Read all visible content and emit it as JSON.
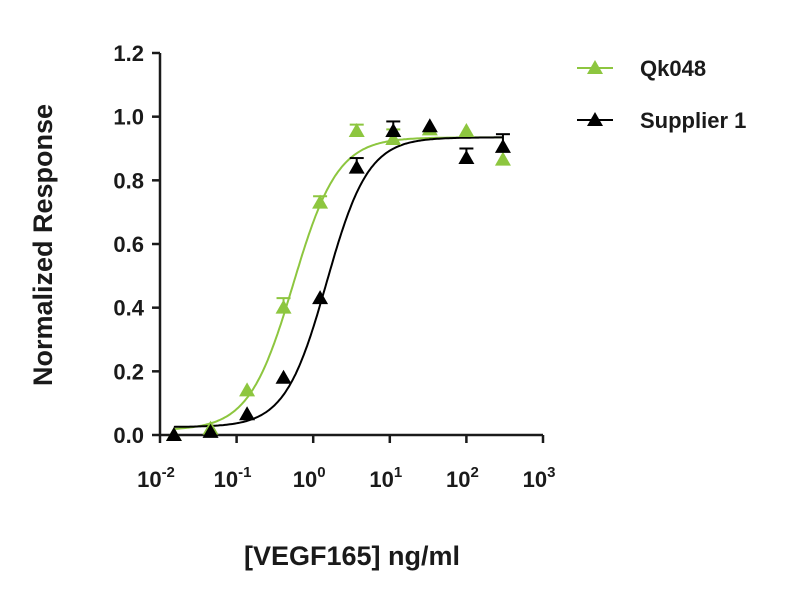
{
  "chart_data": {
    "type": "scatter",
    "title": "",
    "xlabel": "[VEGF165] ng/ml",
    "ylabel": "Normalized Response",
    "xscale": "log",
    "xlim": [
      0.01,
      1000
    ],
    "ylim": [
      0,
      1.2
    ],
    "xticks": [
      {
        "base": "10",
        "exp": "-2"
      },
      {
        "base": "10",
        "exp": "-1"
      },
      {
        "base": "10",
        "exp": "0"
      },
      {
        "base": "10",
        "exp": "1"
      },
      {
        "base": "10",
        "exp": "2"
      },
      {
        "base": "10",
        "exp": "3"
      }
    ],
    "yticks": [
      "0.0",
      "0.2",
      "0.4",
      "0.6",
      "0.8",
      "1.0",
      "1.2"
    ],
    "grid": false,
    "legend_placement": "top-right",
    "series": [
      {
        "name": "Qk048",
        "color": "#8dc63f",
        "marker": "triangle",
        "x": [
          0.0152,
          0.0457,
          0.137,
          0.41,
          1.23,
          3.7,
          11.1,
          33.3,
          100,
          300
        ],
        "y": [
          0.0,
          0.02,
          0.14,
          0.4,
          0.73,
          0.955,
          0.93,
          0.96,
          0.955,
          0.865
        ],
        "error": [
          0,
          0,
          0,
          0.03,
          0.02,
          0.02,
          0.03,
          0,
          0,
          0
        ],
        "fit": {
          "bottom": 0.015,
          "top": 0.935,
          "ec50": 0.55,
          "hill": 1.5
        }
      },
      {
        "name": "Supplier 1",
        "color": "#000000",
        "marker": "triangle",
        "x": [
          0.0152,
          0.0457,
          0.137,
          0.41,
          1.23,
          3.7,
          11.1,
          33.3,
          100,
          300
        ],
        "y": [
          0.0,
          0.01,
          0.065,
          0.18,
          0.43,
          0.84,
          0.955,
          0.97,
          0.87,
          0.905
        ],
        "error": [
          0,
          0,
          0,
          0,
          0,
          0.03,
          0.03,
          0,
          0.03,
          0.04
        ],
        "fit": {
          "bottom": 0.025,
          "top": 0.935,
          "ec50": 1.5,
          "hill": 1.6
        }
      }
    ]
  }
}
